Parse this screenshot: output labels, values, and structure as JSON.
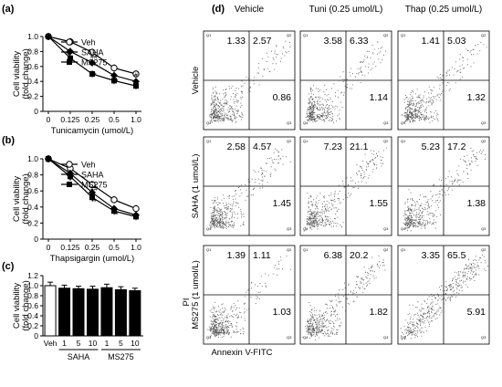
{
  "panels": {
    "a": "(a)",
    "b": "(b)",
    "c": "(c)",
    "d": "(d)"
  },
  "line_legend": [
    "Veh",
    "SAHA",
    "MS275"
  ],
  "ylabel": "Cell viability",
  "ylabel_unit": "(fold change)",
  "chart_data": [
    {
      "panel": "a",
      "type": "line",
      "x_categories": [
        "0",
        "0.125",
        "0.25",
        "0.5",
        "1.0"
      ],
      "xlabel": "Tunicamycin (umol/L)",
      "ylim": [
        0,
        1.0
      ],
      "yticks": [
        "0",
        "0.2",
        "0.4",
        "0.6",
        "0.8",
        "1.0"
      ],
      "series": [
        {
          "name": "Veh",
          "marker": "open-circle",
          "values": [
            1.0,
            0.93,
            0.79,
            0.58,
            0.5
          ]
        },
        {
          "name": "SAHA",
          "marker": "diamond",
          "values": [
            1.0,
            0.8,
            0.65,
            0.48,
            0.4
          ]
        },
        {
          "name": "MS275",
          "marker": "square",
          "values": [
            1.0,
            0.71,
            0.5,
            0.41,
            0.34
          ]
        }
      ],
      "annotations": [
        {
          "x": 1,
          "y": 0.75,
          "text": "*"
        },
        {
          "x": 1,
          "y": 0.66,
          "text": "#"
        },
        {
          "x": 2,
          "y": 0.7,
          "text": "##"
        },
        {
          "x": 2,
          "y": 0.46,
          "text": "**"
        },
        {
          "x": 3,
          "y": 0.44,
          "text": "*"
        },
        {
          "x": 3,
          "y": 0.37,
          "text": "**"
        },
        {
          "x": 4,
          "y": 0.46,
          "text": "#"
        },
        {
          "x": 4,
          "y": 0.3,
          "text": "*"
        }
      ]
    },
    {
      "panel": "b",
      "type": "line",
      "x_categories": [
        "0",
        "0.125",
        "0.25",
        "0.5",
        "1.0"
      ],
      "xlabel": "Thapsigargin (umol/L)",
      "ylim": [
        0,
        1.0
      ],
      "yticks": [
        "0",
        "0.2",
        "0.4",
        "0.6",
        "0.8",
        "1.0"
      ],
      "series": [
        {
          "name": "Veh",
          "marker": "open-circle",
          "values": [
            1.0,
            0.88,
            0.68,
            0.49,
            0.38
          ]
        },
        {
          "name": "SAHA",
          "marker": "diamond",
          "values": [
            1.0,
            0.82,
            0.58,
            0.38,
            0.3
          ]
        },
        {
          "name": "MS275",
          "marker": "square",
          "values": [
            1.0,
            0.78,
            0.52,
            0.35,
            0.28
          ]
        }
      ],
      "annotations": [
        {
          "x": 1,
          "y": 0.7,
          "text": "*"
        },
        {
          "x": 2,
          "y": 0.6,
          "text": "##"
        },
        {
          "x": 2,
          "y": 0.44,
          "text": "**"
        },
        {
          "x": 3,
          "y": 0.28,
          "text": "**"
        },
        {
          "x": 4,
          "y": 0.22,
          "text": "*"
        }
      ]
    },
    {
      "panel": "c",
      "type": "bar",
      "categories": [
        "Veh",
        "1",
        "5",
        "10",
        "1",
        "5",
        "10"
      ],
      "groups": [
        {
          "label": "SAHA",
          "from": 1,
          "to": 3
        },
        {
          "label": "MS275",
          "from": 4,
          "to": 6
        }
      ],
      "values": [
        1.0,
        0.95,
        0.94,
        0.93,
        0.96,
        0.92,
        0.9
      ],
      "errors": [
        0.07,
        0.06,
        0.05,
        0.06,
        0.07,
        0.06,
        0.05
      ],
      "fill": [
        "#ffffff",
        "#000000",
        "#000000",
        "#000000",
        "#000000",
        "#000000",
        "#000000"
      ],
      "ylim": [
        0,
        1.2
      ],
      "yticks": [
        "0",
        "0.2",
        "0.4",
        "0.6",
        "0.8",
        "1.0",
        "1.2"
      ]
    }
  ],
  "flow": {
    "col_titles": [
      "Vehicle",
      "Tuni (0.25 umol/L)",
      "Thap (0.25 umol/L)"
    ],
    "row_labels": [
      "Vehicle",
      "SAHA (1 umol/L)",
      "MS275 (1 umol/L)"
    ],
    "y_axis": "PI",
    "x_axis": "Annexin V-FITC",
    "quadrant_values": [
      [
        [
          "1.33",
          "2.57",
          "0.86"
        ],
        [
          "3.58",
          "6.33",
          "1.14"
        ],
        [
          "1.41",
          "5.03",
          "1.32"
        ]
      ],
      [
        [
          "2.58",
          "4.57",
          "1.45"
        ],
        [
          "7.23",
          "21.1",
          "1.55"
        ],
        [
          "5.23",
          "17.2",
          "1.38"
        ]
      ],
      [
        [
          "1.39",
          "1.11",
          "1.03"
        ],
        [
          "6.38",
          "20.2",
          "1.82"
        ],
        [
          "3.35",
          "65.5",
          "5.91"
        ]
      ]
    ],
    "corner_labels": [
      [
        [
          "Q1",
          "Q2",
          "Q4",
          "Q3"
        ],
        [
          "Q1",
          "Q2",
          "Q4",
          "Q3"
        ],
        [
          "Q1",
          "Q2",
          "Q4",
          "Q3"
        ]
      ],
      [
        [
          "Q1",
          "Q2",
          "Q4",
          "Q3"
        ],
        [
          "Q1",
          "Q2",
          "Q4",
          "Q3"
        ],
        [
          "Q1",
          "Q2",
          "Q4",
          "Q3"
        ]
      ],
      [
        [
          "Q1",
          "Q2",
          "Q4",
          "Q3"
        ],
        [
          "Q1",
          "Q2",
          "Q4",
          "Q3"
        ],
        [
          "Q1",
          "Q2",
          "Q4",
          "Q3"
        ]
      ]
    ]
  }
}
